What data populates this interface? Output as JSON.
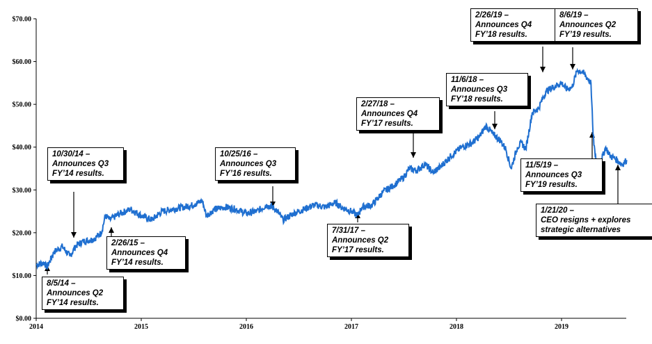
{
  "chart_data": {
    "type": "line",
    "title": "",
    "xlabel": "",
    "ylabel": "",
    "x_ticks": [
      "2014",
      "2015",
      "2016",
      "2017",
      "2018",
      "2019"
    ],
    "y_ticks": [
      "$0.00",
      "$10.00",
      "$20.00",
      "$30.00",
      "$40.00",
      "$50.00",
      "$60.00",
      "$70.00"
    ],
    "ylim": [
      0,
      70
    ],
    "xlim": [
      2014.0,
      2019.66
    ],
    "grid": false,
    "line_color": "#1f6fd0",
    "series": [
      {
        "x": [
          2014.0,
          2014.08,
          2014.1,
          2014.17,
          2014.25,
          2014.32,
          2014.38,
          2014.45,
          2014.55,
          2014.62,
          2014.66,
          2014.7,
          2014.8,
          2014.9,
          2015.0,
          2015.1,
          2015.2,
          2015.3,
          2015.4,
          2015.5,
          2015.58,
          2015.62,
          2015.7,
          2015.8,
          2015.9,
          2016.0,
          2016.1,
          2016.2,
          2016.28,
          2016.35,
          2016.45,
          2016.55,
          2016.65,
          2016.75,
          2016.85,
          2016.9,
          2017.0,
          2017.06,
          2017.1,
          2017.2,
          2017.3,
          2017.4,
          2017.5,
          2017.55,
          2017.62,
          2017.7,
          2017.78,
          2017.85,
          2017.95,
          2018.05,
          2018.15,
          2018.22,
          2018.28,
          2018.35,
          2018.42,
          2018.47,
          2018.52,
          2018.58,
          2018.62,
          2018.66,
          2018.72,
          2018.78,
          2018.85,
          2018.92,
          2019.0,
          2019.05,
          2019.1,
          2019.15,
          2019.2,
          2019.25,
          2019.28,
          2019.3,
          2019.32,
          2019.35,
          2019.38,
          2019.42,
          2019.46,
          2019.5,
          2019.55,
          2019.58,
          2019.62
        ],
        "values": [
          12.5,
          13.0,
          11.8,
          15.5,
          16.8,
          14.5,
          17.0,
          18.0,
          18.5,
          20.0,
          24.0,
          23.0,
          24.5,
          25.5,
          24.0,
          23.0,
          25.0,
          25.5,
          26.0,
          26.5,
          27.5,
          24.0,
          25.5,
          26.0,
          25.5,
          24.5,
          25.0,
          26.5,
          25.5,
          23.0,
          24.5,
          25.5,
          26.5,
          26.0,
          27.0,
          26.0,
          25.0,
          24.0,
          26.0,
          26.5,
          29.5,
          31.0,
          33.0,
          35.0,
          34.5,
          36.0,
          34.0,
          35.5,
          38.0,
          40.0,
          41.0,
          42.5,
          45.0,
          43.0,
          41.5,
          39.5,
          35.0,
          40.0,
          41.0,
          39.5,
          48.0,
          49.0,
          53.0,
          54.0,
          55.0,
          53.5,
          54.0,
          58.0,
          57.5,
          56.0,
          55.0,
          43.0,
          38.0,
          34.5,
          37.0,
          40.0,
          38.0,
          37.5,
          36.5,
          36.0,
          37.0
        ]
      }
    ],
    "annotations": [
      {
        "lines": [
          "8/5/14 –",
          "Announces Q2",
          "FY’14 results."
        ]
      },
      {
        "lines": [
          "10/30/14 –",
          "Announces Q3",
          "FY’14 results."
        ]
      },
      {
        "lines": [
          "2/26/15 –",
          "Announces Q4",
          "FY’14 results."
        ]
      },
      {
        "lines": [
          "10/25/16 –",
          "Announces Q3",
          "FY’16 results."
        ]
      },
      {
        "lines": [
          "7/31/17 –",
          "Announces Q2",
          "FY’17 results."
        ]
      },
      {
        "lines": [
          "2/27/18 –",
          "Announces Q4",
          "FY’17 results."
        ]
      },
      {
        "lines": [
          "11/6/18 –",
          "Announces Q3",
          "FY’18 results."
        ]
      },
      {
        "lines": [
          "2/26/19 –",
          "Announces Q4",
          "FY’18 results."
        ]
      },
      {
        "lines": [
          "8/6/19 –",
          "Announces Q2",
          "FY’19 results."
        ]
      },
      {
        "lines": [
          "11/5/19 –",
          "Announces Q3",
          "FY’19 results."
        ]
      },
      {
        "lines": [
          "1/21/20 –",
          "CEO resigns + explores",
          "strategic alternatives"
        ]
      }
    ]
  }
}
